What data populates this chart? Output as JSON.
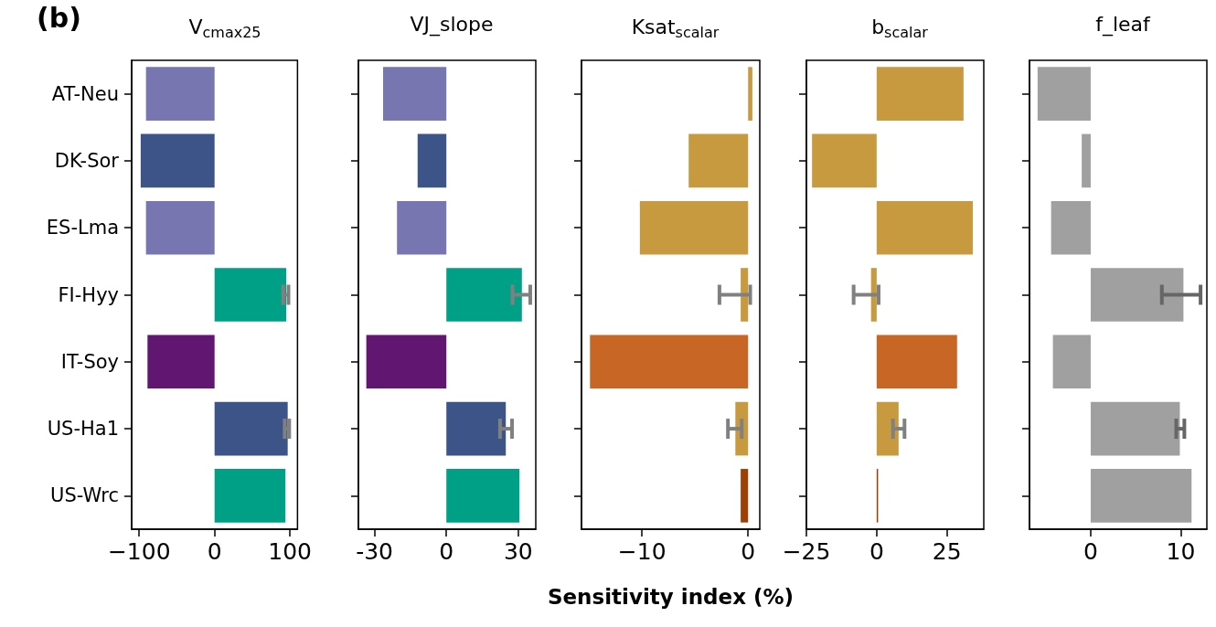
{
  "chart_data": [
    {
      "type": "bar",
      "orientation": "horizontal",
      "title": "V$_{cmax25}$",
      "annotations": [
        "(b)"
      ],
      "categories": [
        "AT-Neu",
        "DK-Sor",
        "ES-Lma",
        "FI-Hyy",
        "IT-Soy",
        "US-Ha1",
        "US-Wrc"
      ],
      "values": [
        -91,
        -98,
        -91,
        95,
        -89,
        97,
        94
      ],
      "colors": [
        "#7876b1",
        "#3c5488",
        "#7876b1",
        "#00a087",
        "#611672",
        "#3c5488",
        "#00a087"
      ],
      "errors": [
        null,
        null,
        null,
        [
          91,
          98
        ],
        null,
        [
          93,
          99
        ],
        null
      ],
      "xlim": [
        -110,
        110
      ],
      "xticks": [
        {
          "value": -100,
          "label": "−100"
        },
        0,
        100
      ],
      "grid": false
    },
    {
      "type": "bar",
      "orientation": "horizontal",
      "title": "VJ_slope",
      "categories": [
        null,
        null,
        null,
        null,
        null,
        null,
        null
      ],
      "values": [
        -26.4,
        -12,
        -20.6,
        31.5,
        -33.4,
        24.8,
        30.5
      ],
      "colors": [
        "#7876b1",
        "#3c5488",
        "#7876b1",
        "#00a087",
        "#611672",
        "#3c5488",
        "#00a087"
      ],
      "errors": [
        null,
        null,
        null,
        [
          27.6,
          35
        ],
        null,
        [
          22.4,
          27.4
        ],
        null
      ],
      "xlim": [
        -36.7,
        37.3
      ],
      "xticks": [
        -30,
        0,
        30
      ],
      "grid": false
    },
    {
      "type": "bar",
      "orientation": "horizontal",
      "title": "Ksat$_{scalar}$",
      "xlabel": "Sensitivity index (%)",
      "categories": [
        null,
        null,
        null,
        null,
        null,
        null,
        null
      ],
      "values": [
        0.4,
        -5.6,
        -10.2,
        -0.7,
        -14.9,
        -1.2,
        -0.7
      ],
      "colors": [
        "#c89a40",
        "#c89a40",
        "#c89a40",
        "#c89a40",
        "#c86626",
        "#c89a40",
        "#9c4105"
      ],
      "errors": [
        null,
        null,
        null,
        [
          -2.7,
          0.2
        ],
        null,
        [
          -1.9,
          -0.6
        ],
        null
      ],
      "xlim": [
        -15.7,
        1.1
      ],
      "xticks": [
        {
          "value": -10,
          "label": "−10"
        },
        0
      ],
      "grid": false
    },
    {
      "type": "bar",
      "orientation": "horizontal",
      "title": "b$_{scalar}$",
      "categories": [
        null,
        null,
        null,
        null,
        null,
        null,
        null
      ],
      "values": [
        30.9,
        -23,
        34.2,
        -2,
        28.6,
        7.8,
        0.5
      ],
      "colors": [
        "#c89a40",
        "#c89a40",
        "#c89a40",
        "#c89a40",
        "#c86626",
        "#c89a40",
        "#9c4105"
      ],
      "errors": [
        null,
        null,
        null,
        [
          -8.2,
          0.7
        ],
        null,
        [
          5.8,
          9.9
        ],
        null
      ],
      "xlim": [
        -25,
        38.1
      ],
      "xticks": [
        {
          "value": -25,
          "label": "−25"
        },
        0,
        25
      ],
      "grid": false
    },
    {
      "type": "bar",
      "orientation": "horizontal",
      "title": "f_leaf",
      "categories": [
        null,
        null,
        null,
        null,
        null,
        null,
        null
      ],
      "values": [
        -5.9,
        -1,
        -4.4,
        10.3,
        -4.2,
        9.9,
        11.2
      ],
      "colors": [
        "#a0a0a0",
        "#a0a0a0",
        "#a0a0a0",
        "#a0a0a0",
        "#a0a0a0",
        "#a0a0a0",
        "#a0a0a0"
      ],
      "errors": [
        null,
        null,
        null,
        [
          7.9,
          12.2
        ],
        null,
        [
          9.5,
          10.4
        ],
        null
      ],
      "xlim": [
        -6.8,
        12.9
      ],
      "xticks": [
        0,
        10
      ],
      "grid": false
    }
  ]
}
